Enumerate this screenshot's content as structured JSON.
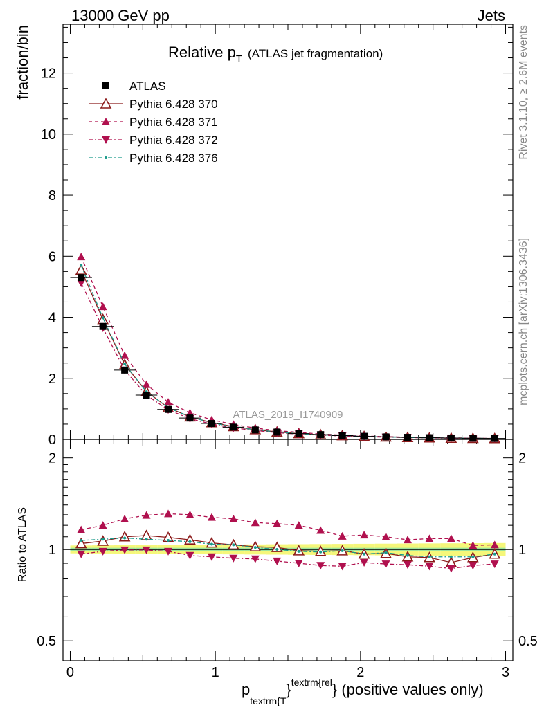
{
  "header": {
    "left": "13000 GeV pp",
    "right": "Jets"
  },
  "side_labels": {
    "top": "Rivet 3.1.10, ≥ 2.6M events",
    "bottom": "mcplots.cern.ch [arXiv:1306.3436]"
  },
  "chart_data": {
    "type": "line",
    "title_main": "Relative p",
    "title_sub": "T",
    "title_rest": "(ATLAS jet fragmentation)",
    "watermark": "ATLAS_2019_I1740909",
    "ylabel": "fraction/bin",
    "ratio_ylabel": "Ratio to ATLAS",
    "xlabel_main": "p",
    "xlabel_sub": "textrm{T",
    "xlabel_sup": "textrm{rel",
    "xlabel_close": "}",
    "xlabel_tail": "} (positive values only)",
    "xlim": [
      -0.05,
      3.05
    ],
    "ylim": [
      0,
      13.6
    ],
    "ratio_ylim": [
      0.43,
      2.3
    ],
    "x_ticks": [
      "0",
      "1",
      "2",
      "3"
    ],
    "y_ticks": [
      "0",
      "2",
      "4",
      "6",
      "8",
      "10",
      "12"
    ],
    "ratio_y_ticks": [
      "0.5",
      "1",
      "2"
    ],
    "x": [
      0.075,
      0.225,
      0.375,
      0.525,
      0.675,
      0.825,
      0.975,
      1.125,
      1.275,
      1.425,
      1.575,
      1.725,
      1.875,
      2.025,
      2.175,
      2.325,
      2.475,
      2.625,
      2.775,
      2.925
    ],
    "data": {
      "name": "ATLAS",
      "values": [
        5.3,
        3.7,
        2.27,
        1.45,
        0.98,
        0.7,
        0.52,
        0.4,
        0.31,
        0.24,
        0.19,
        0.155,
        0.125,
        0.1,
        0.082,
        0.067,
        0.055,
        0.046,
        0.038,
        0.031
      ]
    },
    "series": [
      {
        "name": "Pythia 6.428 370",
        "color": "#8b1a1a",
        "values": [
          5.55,
          3.93,
          2.45,
          1.57,
          1.04,
          0.74,
          0.55,
          0.42,
          0.32,
          0.245,
          0.19,
          0.152,
          0.124,
          0.097,
          0.08,
          0.064,
          0.052,
          0.042,
          0.036,
          0.03
        ]
      },
      {
        "name": "Pythia 6.428 371",
        "color": "#b0104e",
        "values": [
          5.98,
          4.35,
          2.75,
          1.8,
          1.22,
          0.87,
          0.64,
          0.49,
          0.37,
          0.285,
          0.23,
          0.175,
          0.138,
          0.112,
          0.09,
          0.072,
          0.06,
          0.05,
          0.039,
          0.032
        ]
      },
      {
        "name": "Pythia 6.428 372",
        "color": "#b0104e",
        "values": [
          5.12,
          3.65,
          2.27,
          1.45,
          0.97,
          0.68,
          0.5,
          0.375,
          0.29,
          0.22,
          0.173,
          0.139,
          0.111,
          0.091,
          0.074,
          0.06,
          0.049,
          0.04,
          0.034,
          0.028
        ]
      },
      {
        "name": "Pythia 6.428 376",
        "color": "#1a9a8a",
        "values": [
          5.7,
          3.98,
          2.47,
          1.56,
          1.04,
          0.74,
          0.54,
          0.415,
          0.315,
          0.24,
          0.188,
          0.152,
          0.124,
          0.097,
          0.08,
          0.063,
          0.052,
          0.044,
          0.036,
          0.03
        ]
      }
    ],
    "ratios": [
      [
        1.045,
        1.065,
        1.1,
        1.11,
        1.095,
        1.075,
        1.05,
        1.035,
        1.02,
        1.015,
        0.99,
        0.985,
        0.99,
        0.965,
        0.97,
        0.945,
        0.94,
        0.905,
        0.94,
        0.965
      ],
      [
        1.16,
        1.2,
        1.26,
        1.295,
        1.31,
        1.3,
        1.275,
        1.26,
        1.225,
        1.215,
        1.2,
        1.155,
        1.105,
        1.115,
        1.1,
        1.075,
        1.085,
        1.085,
        1.03,
        1.035
      ],
      [
        0.965,
        0.985,
        0.995,
        0.995,
        0.985,
        0.955,
        0.945,
        0.935,
        0.93,
        0.915,
        0.9,
        0.885,
        0.88,
        0.905,
        0.895,
        0.89,
        0.88,
        0.865,
        0.885,
        0.895
      ],
      [
        1.07,
        1.08,
        1.09,
        1.08,
        1.07,
        1.06,
        1.04,
        1.035,
        1.015,
        1.0,
        0.985,
        0.98,
        0.99,
        0.965,
        0.975,
        0.955,
        0.945,
        0.945,
        0.945,
        0.965
      ]
    ],
    "legend_position": "top-left"
  }
}
